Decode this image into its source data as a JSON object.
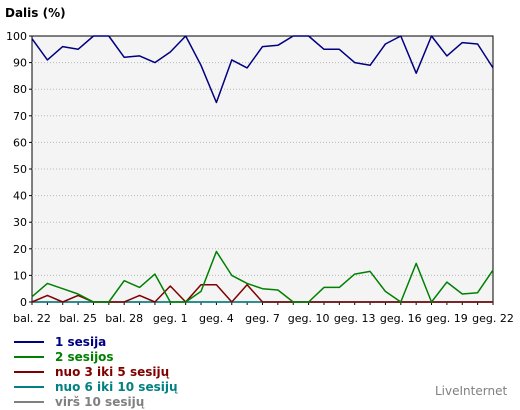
{
  "chart_data": {
    "type": "line",
    "title": "Dalis (%)",
    "xlabel": "",
    "ylabel": "",
    "ylim": [
      0,
      100
    ],
    "yticks": [
      0,
      10,
      20,
      30,
      40,
      50,
      60,
      70,
      80,
      90,
      100
    ],
    "grid": true,
    "legend_position": "bottom-left",
    "tick_labels": [
      "bal. 22",
      "bal. 25",
      "bal. 28",
      "geg. 1",
      "geg. 4",
      "geg. 7",
      "geg. 10",
      "geg. 13",
      "geg. 16",
      "geg. 19",
      "geg. 22"
    ],
    "categories": [
      "bal. 22",
      "bal. 23",
      "bal. 24",
      "bal. 25",
      "bal. 26",
      "bal. 27",
      "bal. 28",
      "bal. 29",
      "bal. 30",
      "geg. 1",
      "geg. 2",
      "geg. 3",
      "geg. 4",
      "geg. 5",
      "geg. 6",
      "geg. 7",
      "geg. 8",
      "geg. 9",
      "geg. 10",
      "geg. 11",
      "geg. 12",
      "geg. 13",
      "geg. 14",
      "geg. 15",
      "geg. 16",
      "geg. 17",
      "geg. 18",
      "geg. 19",
      "geg. 20",
      "geg. 21",
      "geg. 22"
    ],
    "series": [
      {
        "name": "1 sesija",
        "color": "#000080",
        "values": [
          99,
          91,
          96,
          95,
          100,
          100,
          92,
          92.5,
          90,
          94,
          100,
          89,
          75,
          91,
          88,
          96,
          96.5,
          100,
          100,
          95,
          95,
          90,
          89,
          97,
          100,
          86,
          100,
          92.5,
          97.5,
          97,
          88
        ]
      },
      {
        "name": "2 sesijos",
        "color": "#008000",
        "values": [
          2,
          7,
          5,
          3,
          0,
          0,
          8,
          5.5,
          10.5,
          0,
          0,
          4,
          19,
          10,
          7,
          5,
          4.5,
          0,
          0,
          5.5,
          5.5,
          10.5,
          11.5,
          4,
          0,
          14.5,
          0,
          7.5,
          3,
          3.5,
          12
        ]
      },
      {
        "name": "nuo 3 iki 5 sesijų",
        "color": "#800000",
        "values": [
          0,
          2.5,
          0,
          2.5,
          0,
          0,
          0,
          2.5,
          0,
          6,
          0,
          6.5,
          6.5,
          0,
          6.5,
          0,
          0,
          0,
          0,
          0,
          0,
          0,
          0,
          0,
          0,
          0,
          0,
          0,
          0,
          0,
          0
        ]
      },
      {
        "name": "nuo 6 iki 10 sesijų",
        "color": "#008080",
        "values": [
          0,
          0,
          0,
          0,
          0,
          0,
          0,
          0,
          0,
          0,
          0,
          0,
          0,
          0,
          0,
          0,
          0,
          0,
          0,
          0,
          0,
          0,
          0,
          0,
          0,
          0,
          0,
          0,
          0,
          0,
          0
        ]
      },
      {
        "name": "virš 10 sesijų",
        "color": "#808080",
        "values": [
          0,
          0,
          0,
          0,
          0,
          0,
          0,
          0,
          0,
          0,
          0,
          0,
          0,
          0,
          0,
          0,
          0,
          0,
          0,
          0,
          0,
          0,
          0,
          0,
          0,
          0,
          0,
          0,
          0,
          0,
          0
        ]
      }
    ]
  },
  "brand": "LiveInternet"
}
